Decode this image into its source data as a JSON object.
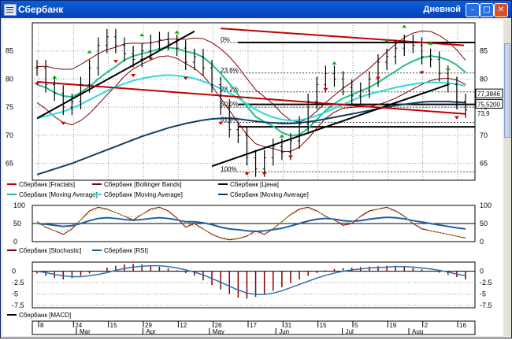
{
  "window": {
    "title": "Сбербанк",
    "period": "Дневной"
  },
  "colors": {
    "price": "#000000",
    "fractal_up": "#00b000",
    "fractal_down": "#d00000",
    "bollinger": "#800000",
    "ma_fast": "#20c080",
    "ma_mid": "#30d8d8",
    "ma_slow": "#104060",
    "trendline_red": "#c00000",
    "fib_dotted": "#404040",
    "stoch_k": "#800000",
    "rsi": "#1f5f9f",
    "macd_hist": "#800000",
    "macd_signal": "#3070b0"
  },
  "main_legend": [
    {
      "label": "Сбербанк [Fractals]",
      "color": "#c00000"
    },
    {
      "label": "Сбербанк [Bollinger Bands]",
      "color": "#800000"
    },
    {
      "label": "Сбербанк [Цена]",
      "color": "#000000"
    },
    {
      "label": "Сбербанк [Moving Average]",
      "color": "#20c080"
    },
    {
      "label": "Сбербанк [Moving Average]",
      "color": "#30d8d8"
    },
    {
      "label": "Сбербанк [Moving Average]",
      "color": "#104060"
    }
  ],
  "osc_legend": [
    {
      "label": "Сбербанк [Stochastic]",
      "color": "#800000"
    },
    {
      "label": "Сбербанк [RSI]",
      "color": "#1f5f9f"
    }
  ],
  "macd_legend": [
    {
      "label": "Сбербанк [MACD]",
      "color": "#000000"
    }
  ],
  "fib_labels": [
    "0%",
    "23.6%",
    "38.2%",
    "50.0%",
    "61.8%",
    "100%"
  ],
  "price_markers": [
    "77,3846",
    "75,5200",
    "73,9"
  ],
  "chart_data": [
    {
      "type": "line",
      "title": "",
      "y_ticks": [
        65,
        70,
        75,
        80,
        85
      ],
      "ylim": [
        62,
        90
      ],
      "grid": true,
      "series": [
        {
          "name": "Сбербанк [Цена]",
          "values": [
            82,
            79,
            77.5,
            75,
            76,
            79,
            82,
            86,
            87.5,
            86,
            84.5,
            83.5,
            85,
            86.5,
            87,
            86.5,
            85.5,
            83,
            84,
            82,
            79,
            75,
            71,
            70,
            66,
            64,
            66,
            68,
            67,
            69,
            72,
            76,
            79,
            81,
            80,
            78.5,
            77,
            78,
            80,
            83,
            84,
            85.5,
            86.5,
            86,
            84,
            83.5,
            81,
            79,
            76,
            74.5
          ]
        },
        {
          "name": "Сбербанк [Moving Average]",
          "values": [
            79,
            78.5,
            77.6,
            77,
            76.8,
            77.6,
            78.7,
            80,
            81.2,
            82.2,
            83.4,
            84.1,
            84.5,
            84.9,
            85.4,
            85.6,
            85.4,
            84.9,
            84.6,
            83.9,
            82.6,
            81,
            79.2,
            77.2,
            75.1,
            73.3,
            72.4,
            71.6,
            70.5,
            69.9,
            70.1,
            71.2,
            72.8,
            74.4,
            75.6,
            76.6,
            77.2,
            77.9,
            78.5,
            79.4,
            80.4,
            81.4,
            82.4,
            83.2,
            83.8,
            84.1,
            83.9,
            83.4,
            82.5,
            81.2
          ]
        },
        {
          "name": "Сбербанк [Moving Average]",
          "values": [
            73,
            73.4,
            73.8,
            74.2,
            74.8,
            75.5,
            76.3,
            77.1,
            77.9,
            78.6,
            79.2,
            79.7,
            80.1,
            80.4,
            80.6,
            80.7,
            80.6,
            80.4,
            80.1,
            79.6,
            79,
            78.3,
            77.5,
            76.6,
            75.6,
            74.6,
            73.8,
            73.2,
            72.8,
            72.6,
            72.7,
            73,
            73.5,
            74.1,
            74.8,
            75.5,
            76.2,
            76.8,
            77.3,
            77.7,
            78.1,
            78.5,
            78.8,
            79.1,
            79.3,
            79.4,
            79.4,
            79.3,
            79.1,
            78.8
          ]
        },
        {
          "name": "Сбербанк [Moving Average]",
          "values": [
            63,
            63.5,
            64,
            64.5,
            65,
            65.6,
            66.2,
            66.8,
            67.4,
            68,
            68.6,
            69.2,
            69.8,
            70.3,
            70.8,
            71.3,
            71.7,
            72.1,
            72.4,
            72.7,
            72.9,
            73,
            73,
            72.9,
            72.7,
            72.5,
            72.3,
            72.2,
            72.1,
            72.1,
            72.2,
            72.4,
            72.6,
            72.9,
            73.2,
            73.5,
            73.8,
            74.1,
            74.4,
            74.7,
            75,
            75.3,
            75.5,
            75.7,
            75.9,
            76,
            76,
            76,
            75.9,
            75.8
          ]
        }
      ]
    },
    {
      "type": "line",
      "title": "",
      "y_ticks": [
        0,
        50,
        100
      ],
      "ylim": [
        0,
        100
      ],
      "series": [
        {
          "name": "Сбербанк [Stochastic]",
          "values": [
            55,
            40,
            30,
            20,
            35,
            60,
            85,
            95,
            90,
            80,
            70,
            60,
            75,
            90,
            95,
            85,
            65,
            40,
            50,
            35,
            20,
            10,
            5,
            8,
            15,
            30,
            20,
            35,
            55,
            75,
            90,
            95,
            85,
            70,
            60,
            45,
            50,
            70,
            85,
            90,
            95,
            85,
            70,
            50,
            35,
            30,
            25,
            20,
            15,
            10
          ]
        },
        {
          "name": "Сбербанк [RSI]",
          "values": [
            50,
            48,
            45,
            42,
            44,
            50,
            58,
            64,
            66,
            64,
            61,
            59,
            61,
            64,
            66,
            64,
            60,
            55,
            55,
            52,
            47,
            40,
            35,
            33,
            30,
            28,
            30,
            33,
            37,
            43,
            50,
            57,
            62,
            64,
            62,
            58,
            56,
            58,
            62,
            65,
            67,
            66,
            63,
            58,
            54,
            50,
            46,
            42,
            38,
            35
          ]
        }
      ]
    },
    {
      "type": "bar",
      "title": "",
      "y_ticks": [
        0,
        -2.5,
        -5,
        -7.5
      ],
      "ylim": [
        -8,
        2
      ],
      "series": [
        {
          "name": "histogram",
          "values": [
            -0.5,
            -1,
            -1.5,
            -1.8,
            -1.5,
            -1,
            -0.5,
            0,
            0.8,
            1.2,
            1.5,
            1.6,
            1.5,
            1.3,
            1,
            0.6,
            0.2,
            -0.4,
            -1,
            -2,
            -3,
            -4,
            -5,
            -5.8,
            -6,
            -5.6,
            -5,
            -4.3,
            -3.5,
            -2.6,
            -1.8,
            -1,
            -0.4,
            0.2,
            0.5,
            0.7,
            0.8,
            0.9,
            1,
            1.1,
            1.2,
            1.2,
            1,
            0.7,
            0.4,
            0.1,
            -0.3,
            -0.8,
            -1.3,
            -1.8
          ]
        },
        {
          "name": "signal",
          "values": [
            0,
            -0.3,
            -0.7,
            -1,
            -1.2,
            -1.2,
            -1,
            -0.7,
            -0.3,
            0.2,
            0.6,
            0.9,
            1.1,
            1.2,
            1.2,
            1,
            0.7,
            0.3,
            -0.2,
            -0.8,
            -1.6,
            -2.4,
            -3.3,
            -4.1,
            -4.8,
            -5.1,
            -5.1,
            -4.8,
            -4.3,
            -3.6,
            -2.9,
            -2.2,
            -1.5,
            -0.9,
            -0.4,
            0,
            0.3,
            0.5,
            0.7,
            0.8,
            0.9,
            1,
            1,
            0.9,
            0.7,
            0.5,
            0.2,
            -0.2,
            -0.6,
            -1
          ]
        }
      ]
    }
  ],
  "date_axis": {
    "days": [
      "8",
      "24",
      "15",
      "29",
      "12",
      "26",
      "17",
      "31",
      "15",
      "5",
      "19",
      "2",
      "16"
    ],
    "months": [
      "Mar",
      "Apr",
      "May",
      "Jun",
      "Jul",
      "Aug"
    ]
  },
  "fractal_up_idx": [
    2,
    6,
    12,
    16,
    28,
    34,
    40,
    42,
    45,
    47
  ],
  "fractal_down_idx": [
    0,
    3,
    9,
    11,
    13,
    17,
    21,
    24,
    26,
    29,
    33,
    39,
    44,
    48
  ]
}
